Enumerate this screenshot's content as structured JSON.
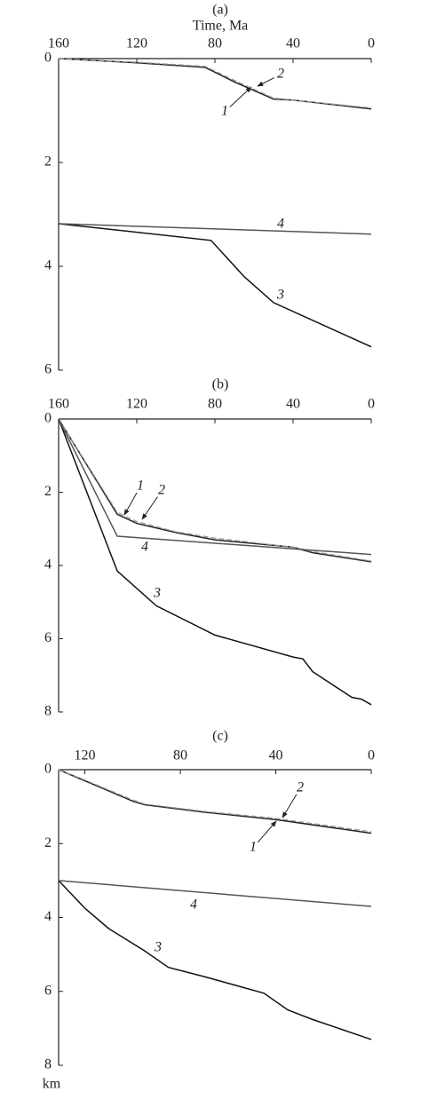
{
  "chart_data": [
    {
      "type": "line",
      "title": "(a)",
      "xlabel": "Time, Ma",
      "xlim": [
        160,
        0
      ],
      "xticks": [
        160,
        120,
        80,
        40,
        0
      ],
      "ylim": [
        0,
        6
      ],
      "yticks": [
        0,
        2,
        4,
        6
      ],
      "series": [
        {
          "name": "1",
          "color": "#222222",
          "dashed": false,
          "x": [
            160,
            120,
            85,
            70,
            50,
            40,
            0
          ],
          "values": [
            0,
            0.08,
            0.17,
            0.45,
            0.78,
            0.8,
            0.97
          ]
        },
        {
          "name": "2",
          "color": "#999999",
          "dashed": true,
          "x": [
            160,
            120,
            85,
            70,
            50,
            40,
            0
          ],
          "values": [
            0,
            0.07,
            0.15,
            0.42,
            0.76,
            0.8,
            0.95
          ]
        },
        {
          "name": "3",
          "color": "#111111",
          "dashed": false,
          "x": [
            160,
            82,
            65,
            50,
            0
          ],
          "values": [
            3.18,
            3.5,
            4.2,
            4.7,
            5.55
          ]
        },
        {
          "name": "4",
          "color": "#555555",
          "dashed": false,
          "x": [
            160,
            0
          ],
          "values": [
            3.18,
            3.38
          ]
        }
      ]
    },
    {
      "type": "line",
      "title": "(b)",
      "xlim": [
        160,
        0
      ],
      "xticks": [
        160,
        120,
        80,
        40,
        0
      ],
      "ylim": [
        0,
        8
      ],
      "yticks": [
        0,
        2,
        4,
        6,
        8
      ],
      "series": [
        {
          "name": "1",
          "color": "#222222",
          "dashed": false,
          "x": [
            160,
            130,
            120,
            100,
            80,
            40,
            30,
            0
          ],
          "values": [
            0,
            2.6,
            2.85,
            3.1,
            3.3,
            3.5,
            3.65,
            3.9
          ]
        },
        {
          "name": "2",
          "color": "#999999",
          "dashed": true,
          "x": [
            160,
            130,
            120,
            100,
            80,
            40,
            30,
            0
          ],
          "values": [
            0,
            2.55,
            2.8,
            3.08,
            3.25,
            3.5,
            3.62,
            3.88
          ]
        },
        {
          "name": "3",
          "color": "#111111",
          "dashed": false,
          "x": [
            160,
            130,
            110,
            80,
            40,
            35,
            30,
            10,
            5,
            0
          ],
          "values": [
            0,
            4.15,
            5.1,
            5.9,
            6.5,
            6.55,
            6.9,
            7.6,
            7.65,
            7.8
          ]
        },
        {
          "name": "4",
          "color": "#555555",
          "dashed": false,
          "x": [
            160,
            130,
            0
          ],
          "values": [
            0,
            3.2,
            3.7
          ]
        }
      ]
    },
    {
      "type": "line",
      "title": "(c)",
      "ylabel": "km",
      "xlim": [
        131,
        0
      ],
      "xticks": [
        120,
        80,
        40,
        0
      ],
      "ylim": [
        0,
        8
      ],
      "yticks": [
        0,
        2,
        4,
        6,
        8
      ],
      "series": [
        {
          "name": "1",
          "color": "#222222",
          "dashed": false,
          "x": [
            131,
            120,
            100,
            95,
            70,
            40,
            0
          ],
          "values": [
            0,
            0.3,
            0.85,
            0.95,
            1.15,
            1.35,
            1.72
          ]
        },
        {
          "name": "2",
          "color": "#999999",
          "dashed": true,
          "x": [
            131,
            120,
            100,
            95,
            70,
            40,
            0
          ],
          "values": [
            0,
            0.28,
            0.82,
            0.93,
            1.13,
            1.32,
            1.68
          ]
        },
        {
          "name": "3",
          "color": "#111111",
          "dashed": false,
          "x": [
            131,
            120,
            110,
            95,
            85,
            70,
            45,
            35,
            25,
            0
          ],
          "values": [
            3.0,
            3.75,
            4.3,
            4.9,
            5.35,
            5.6,
            6.05,
            6.5,
            6.75,
            7.3
          ]
        },
        {
          "name": "4",
          "color": "#555555",
          "dashed": false,
          "x": [
            131,
            0
          ],
          "values": [
            3.0,
            3.7
          ]
        }
      ]
    }
  ]
}
